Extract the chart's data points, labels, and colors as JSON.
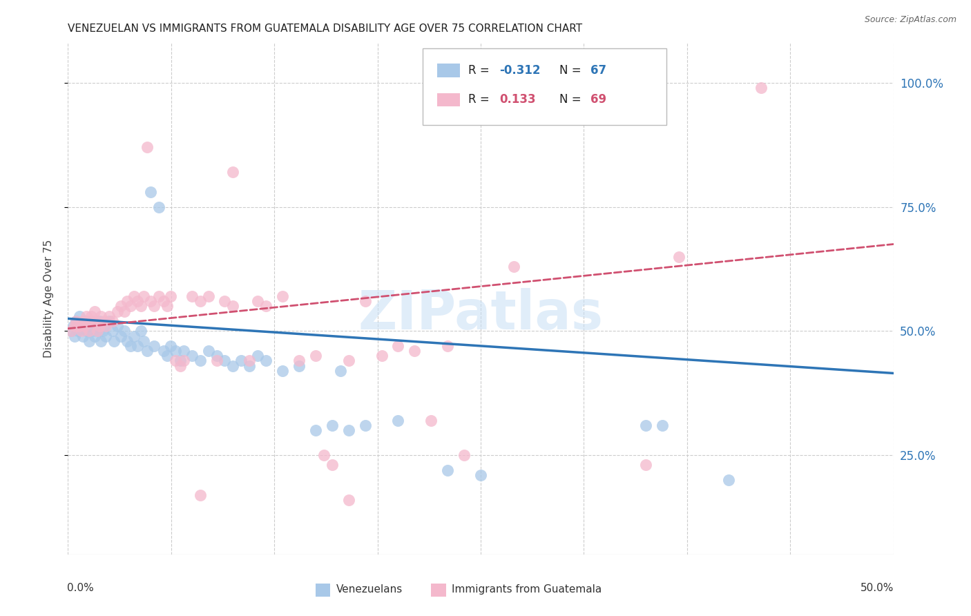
{
  "title": "VENEZUELAN VS IMMIGRANTS FROM GUATEMALA DISABILITY AGE OVER 75 CORRELATION CHART",
  "source": "Source: ZipAtlas.com",
  "ylabel": "Disability Age Over 75",
  "venezuelan_R": -0.312,
  "venezuelan_N": 67,
  "guatemalan_R": 0.133,
  "guatemalan_N": 69,
  "venezuelan_color": "#a8c8e8",
  "guatemalan_color": "#f4b8cc",
  "venezuelan_line_color": "#2e75b6",
  "guatemalan_line_color": "#d05070",
  "watermark_color": "#ddeeff",
  "background_color": "#ffffff",
  "grid_color": "#cccccc",
  "xmin": 0.0,
  "xmax": 0.5,
  "ymin": 0.05,
  "ymax": 1.08,
  "ytick_vals": [
    0.25,
    0.5,
    0.75,
    1.0
  ],
  "ytick_labels": [
    "25.0%",
    "50.0%",
    "75.0%",
    "100.0%"
  ],
  "venezuelan_line": [
    0.0,
    0.525,
    0.5,
    0.415
  ],
  "guatemalan_line": [
    0.0,
    0.505,
    0.5,
    0.675
  ],
  "venezuelan_points": [
    [
      0.002,
      0.5
    ],
    [
      0.003,
      0.51
    ],
    [
      0.004,
      0.49
    ],
    [
      0.005,
      0.52
    ],
    [
      0.006,
      0.5
    ],
    [
      0.007,
      0.53
    ],
    [
      0.008,
      0.51
    ],
    [
      0.009,
      0.49
    ],
    [
      0.01,
      0.52
    ],
    [
      0.011,
      0.5
    ],
    [
      0.012,
      0.51
    ],
    [
      0.013,
      0.48
    ],
    [
      0.014,
      0.52
    ],
    [
      0.015,
      0.5
    ],
    [
      0.016,
      0.49
    ],
    [
      0.017,
      0.51
    ],
    [
      0.018,
      0.5
    ],
    [
      0.019,
      0.52
    ],
    [
      0.02,
      0.48
    ],
    [
      0.021,
      0.5
    ],
    [
      0.022,
      0.51
    ],
    [
      0.023,
      0.49
    ],
    [
      0.025,
      0.52
    ],
    [
      0.027,
      0.5
    ],
    [
      0.028,
      0.48
    ],
    [
      0.03,
      0.51
    ],
    [
      0.032,
      0.49
    ],
    [
      0.034,
      0.5
    ],
    [
      0.036,
      0.48
    ],
    [
      0.038,
      0.47
    ],
    [
      0.04,
      0.49
    ],
    [
      0.042,
      0.47
    ],
    [
      0.044,
      0.5
    ],
    [
      0.046,
      0.48
    ],
    [
      0.048,
      0.46
    ],
    [
      0.05,
      0.78
    ],
    [
      0.052,
      0.47
    ],
    [
      0.055,
      0.75
    ],
    [
      0.058,
      0.46
    ],
    [
      0.06,
      0.45
    ],
    [
      0.062,
      0.47
    ],
    [
      0.065,
      0.46
    ],
    [
      0.068,
      0.44
    ],
    [
      0.07,
      0.46
    ],
    [
      0.075,
      0.45
    ],
    [
      0.08,
      0.44
    ],
    [
      0.085,
      0.46
    ],
    [
      0.09,
      0.45
    ],
    [
      0.095,
      0.44
    ],
    [
      0.1,
      0.43
    ],
    [
      0.105,
      0.44
    ],
    [
      0.11,
      0.43
    ],
    [
      0.115,
      0.45
    ],
    [
      0.12,
      0.44
    ],
    [
      0.13,
      0.42
    ],
    [
      0.14,
      0.43
    ],
    [
      0.15,
      0.3
    ],
    [
      0.16,
      0.31
    ],
    [
      0.165,
      0.42
    ],
    [
      0.17,
      0.3
    ],
    [
      0.18,
      0.31
    ],
    [
      0.2,
      0.32
    ],
    [
      0.23,
      0.22
    ],
    [
      0.25,
      0.21
    ],
    [
      0.35,
      0.31
    ],
    [
      0.36,
      0.31
    ],
    [
      0.4,
      0.2
    ]
  ],
  "guatemalan_points": [
    [
      0.002,
      0.5
    ],
    [
      0.004,
      0.51
    ],
    [
      0.005,
      0.52
    ],
    [
      0.007,
      0.51
    ],
    [
      0.008,
      0.5
    ],
    [
      0.009,
      0.52
    ],
    [
      0.01,
      0.51
    ],
    [
      0.011,
      0.53
    ],
    [
      0.012,
      0.52
    ],
    [
      0.013,
      0.5
    ],
    [
      0.014,
      0.53
    ],
    [
      0.015,
      0.52
    ],
    [
      0.016,
      0.54
    ],
    [
      0.017,
      0.52
    ],
    [
      0.018,
      0.5
    ],
    [
      0.019,
      0.51
    ],
    [
      0.02,
      0.53
    ],
    [
      0.022,
      0.52
    ],
    [
      0.023,
      0.51
    ],
    [
      0.025,
      0.53
    ],
    [
      0.027,
      0.52
    ],
    [
      0.03,
      0.54
    ],
    [
      0.032,
      0.55
    ],
    [
      0.034,
      0.54
    ],
    [
      0.036,
      0.56
    ],
    [
      0.038,
      0.55
    ],
    [
      0.04,
      0.57
    ],
    [
      0.042,
      0.56
    ],
    [
      0.044,
      0.55
    ],
    [
      0.046,
      0.57
    ],
    [
      0.048,
      0.87
    ],
    [
      0.05,
      0.56
    ],
    [
      0.052,
      0.55
    ],
    [
      0.055,
      0.57
    ],
    [
      0.058,
      0.56
    ],
    [
      0.06,
      0.55
    ],
    [
      0.062,
      0.57
    ],
    [
      0.065,
      0.44
    ],
    [
      0.068,
      0.43
    ],
    [
      0.07,
      0.44
    ],
    [
      0.075,
      0.57
    ],
    [
      0.08,
      0.56
    ],
    [
      0.085,
      0.57
    ],
    [
      0.09,
      0.44
    ],
    [
      0.095,
      0.56
    ],
    [
      0.1,
      0.55
    ],
    [
      0.11,
      0.44
    ],
    [
      0.115,
      0.56
    ],
    [
      0.12,
      0.55
    ],
    [
      0.13,
      0.57
    ],
    [
      0.14,
      0.44
    ],
    [
      0.15,
      0.45
    ],
    [
      0.155,
      0.25
    ],
    [
      0.16,
      0.23
    ],
    [
      0.17,
      0.44
    ],
    [
      0.18,
      0.56
    ],
    [
      0.19,
      0.45
    ],
    [
      0.2,
      0.47
    ],
    [
      0.21,
      0.46
    ],
    [
      0.22,
      0.32
    ],
    [
      0.23,
      0.47
    ],
    [
      0.24,
      0.25
    ],
    [
      0.27,
      0.63
    ],
    [
      0.35,
      0.23
    ],
    [
      0.37,
      0.65
    ],
    [
      0.42,
      0.99
    ],
    [
      0.08,
      0.17
    ],
    [
      0.1,
      0.82
    ],
    [
      0.17,
      0.16
    ]
  ]
}
